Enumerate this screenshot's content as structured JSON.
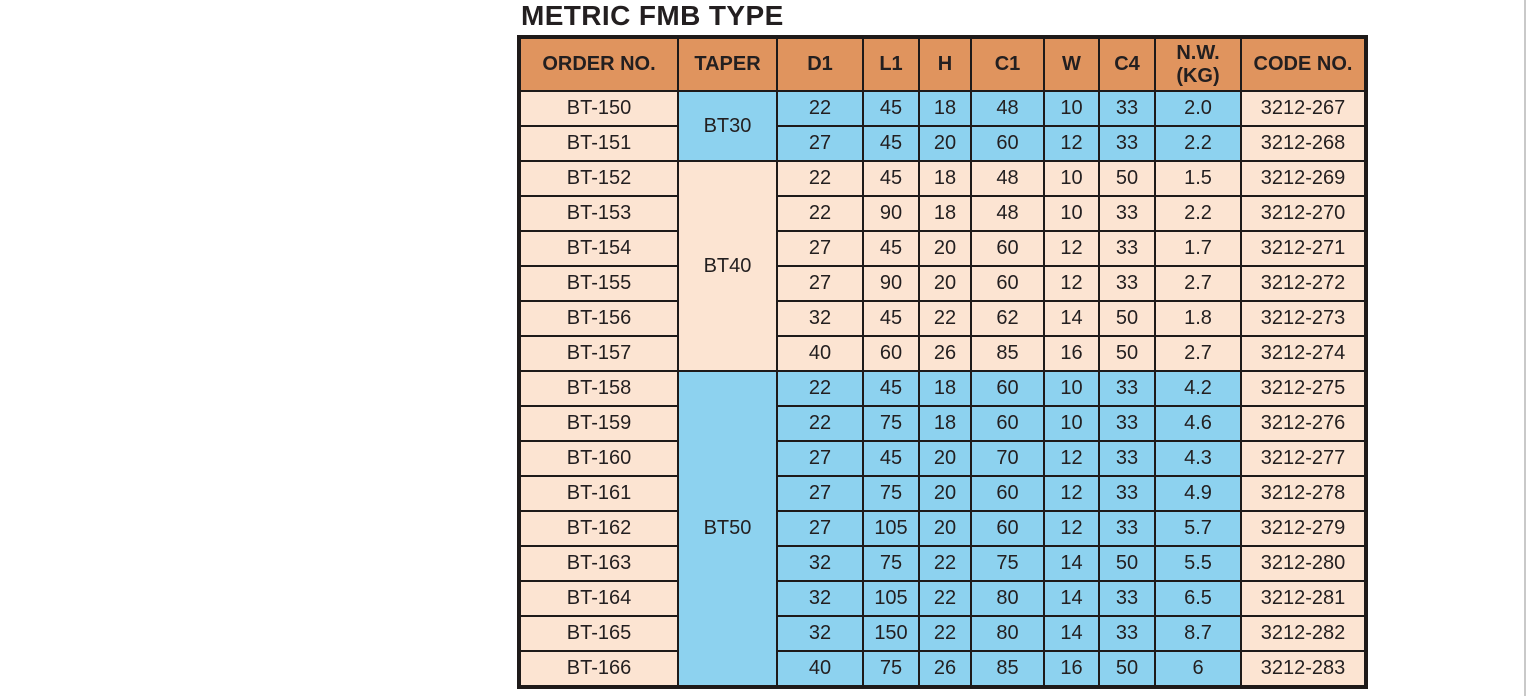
{
  "title": "METRIC FMB TYPE",
  "colors": {
    "header_bg": "#e0945e",
    "peach_bg": "#fce4d2",
    "blue_bg": "#8dd2ef",
    "border": "#1e1a19",
    "page_edge_line": "#c9c9c9",
    "text": "#231f20"
  },
  "table": {
    "columns": [
      "ORDER NO.",
      "TAPER",
      "D1",
      "L1",
      "H",
      "C1",
      "W",
      "C4",
      "N.W.\n(KG)",
      "CODE NO."
    ],
    "groups": [
      {
        "taper": "BT30",
        "tone": "blue",
        "rows": [
          {
            "order": "BT-150",
            "values": [
              "22",
              "45",
              "18",
              "48",
              "10",
              "33",
              "2.0"
            ],
            "code": "3212-267"
          },
          {
            "order": "BT-151",
            "values": [
              "27",
              "45",
              "20",
              "60",
              "12",
              "33",
              "2.2"
            ],
            "code": "3212-268"
          }
        ]
      },
      {
        "taper": "BT40",
        "tone": "peach",
        "rows": [
          {
            "order": "BT-152",
            "values": [
              "22",
              "45",
              "18",
              "48",
              "10",
              "50",
              "1.5"
            ],
            "code": "3212-269"
          },
          {
            "order": "BT-153",
            "values": [
              "22",
              "90",
              "18",
              "48",
              "10",
              "33",
              "2.2"
            ],
            "code": "3212-270"
          },
          {
            "order": "BT-154",
            "values": [
              "27",
              "45",
              "20",
              "60",
              "12",
              "33",
              "1.7"
            ],
            "code": "3212-271"
          },
          {
            "order": "BT-155",
            "values": [
              "27",
              "90",
              "20",
              "60",
              "12",
              "33",
              "2.7"
            ],
            "code": "3212-272"
          },
          {
            "order": "BT-156",
            "values": [
              "32",
              "45",
              "22",
              "62",
              "14",
              "50",
              "1.8"
            ],
            "code": "3212-273"
          },
          {
            "order": "BT-157",
            "values": [
              "40",
              "60",
              "26",
              "85",
              "16",
              "50",
              "2.7"
            ],
            "code": "3212-274"
          }
        ]
      },
      {
        "taper": "BT50",
        "tone": "blue",
        "rows": [
          {
            "order": "BT-158",
            "values": [
              "22",
              "45",
              "18",
              "60",
              "10",
              "33",
              "4.2"
            ],
            "code": "3212-275"
          },
          {
            "order": "BT-159",
            "values": [
              "22",
              "75",
              "18",
              "60",
              "10",
              "33",
              "4.6"
            ],
            "code": "3212-276"
          },
          {
            "order": "BT-160",
            "values": [
              "27",
              "45",
              "20",
              "70",
              "12",
              "33",
              "4.3"
            ],
            "code": "3212-277"
          },
          {
            "order": "BT-161",
            "values": [
              "27",
              "75",
              "20",
              "60",
              "12",
              "33",
              "4.9"
            ],
            "code": "3212-278"
          },
          {
            "order": "BT-162",
            "values": [
              "27",
              "105",
              "20",
              "60",
              "12",
              "33",
              "5.7"
            ],
            "code": "3212-279"
          },
          {
            "order": "BT-163",
            "values": [
              "32",
              "75",
              "22",
              "75",
              "14",
              "50",
              "5.5"
            ],
            "code": "3212-280"
          },
          {
            "order": "BT-164",
            "values": [
              "32",
              "105",
              "22",
              "80",
              "14",
              "33",
              "6.5"
            ],
            "code": "3212-281"
          },
          {
            "order": "BT-165",
            "values": [
              "32",
              "150",
              "22",
              "80",
              "14",
              "33",
              "8.7"
            ],
            "code": "3212-282"
          },
          {
            "order": "BT-166",
            "values": [
              "40",
              "75",
              "26",
              "85",
              "16",
              "50",
              "6"
            ],
            "code": "3212-283"
          }
        ]
      }
    ]
  }
}
